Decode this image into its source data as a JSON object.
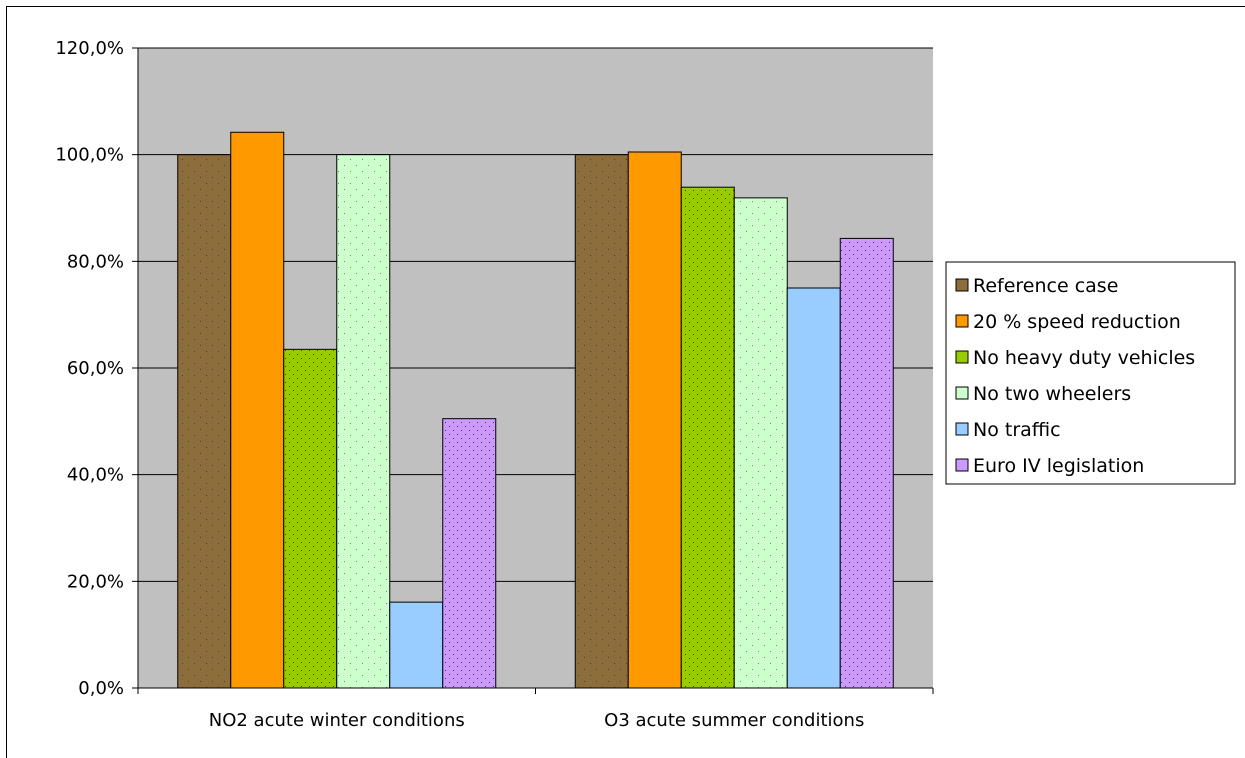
{
  "chart_data": {
    "type": "bar",
    "title": "",
    "xlabel": "",
    "ylabel": "",
    "ylim": [
      0,
      120
    ],
    "yticks": [
      "0,0%",
      "20,0%",
      "40,0%",
      "60,0%",
      "80,0%",
      "100,0%",
      "120,0%"
    ],
    "categories": [
      "NO2 acute winter conditions",
      "O3 acute summer conditions"
    ],
    "grid": true,
    "legend_position": "right",
    "series": [
      {
        "name": "Reference case",
        "color": "#8c6d3c",
        "pattern": "sparse",
        "values": [
          100.0,
          100.0
        ]
      },
      {
        "name": "20 % speed reduction",
        "color": "#ff9900",
        "pattern": "none",
        "values": [
          104.2,
          100.5
        ]
      },
      {
        "name": "No heavy duty vehicles",
        "color": "#99cc00",
        "pattern": "dense",
        "values": [
          63.5,
          93.9
        ]
      },
      {
        "name": "No two wheelers",
        "color": "#ccffcc",
        "pattern": "sparse",
        "values": [
          100.0,
          91.9
        ]
      },
      {
        "name": "No traffic",
        "color": "#99ccff",
        "pattern": "none",
        "values": [
          16.1,
          75.0
        ]
      },
      {
        "name": "Euro IV legislation",
        "color": "#cc99ff",
        "pattern": "dense",
        "values": [
          50.5,
          84.3
        ]
      }
    ]
  }
}
